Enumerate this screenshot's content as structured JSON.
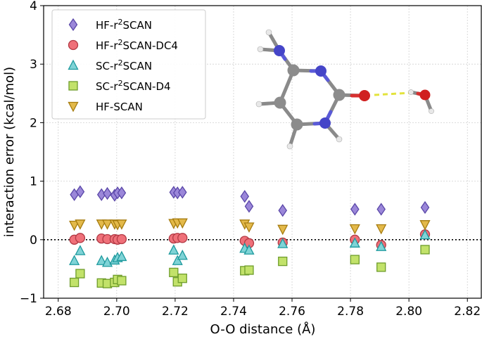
{
  "chart_data": {
    "type": "scatter",
    "xlabel": "O-O distance (Å)",
    "ylabel": "interaction error (kcal/mol)",
    "xlim": [
      2.675,
      2.825
    ],
    "ylim": [
      -1,
      4
    ],
    "xticks": [
      2.68,
      2.7,
      2.72,
      2.74,
      2.76,
      2.78,
      2.8,
      2.82
    ],
    "yticks": [
      -1,
      0,
      1,
      2,
      3,
      4
    ],
    "xtick_labels": [
      "2.68",
      "2.70",
      "2.72",
      "2.74",
      "2.76",
      "2.78",
      "2.80",
      "2.82"
    ],
    "ytick_labels": [
      "−1",
      "0",
      "1",
      "2",
      "3",
      "4"
    ],
    "grid": true,
    "zero_line": 0,
    "legend_position": "top-left",
    "series": [
      {
        "name": "HF-r²SCAN",
        "label_base": "HF-r",
        "label_sup": "2",
        "label_rest": "SCAN",
        "marker": "diamond",
        "color": "#9b87d9",
        "edge": "#5a47a8",
        "x": [
          2.6855,
          2.6875,
          2.6948,
          2.6968,
          2.6993,
          2.7003,
          2.7017,
          2.7195,
          2.7208,
          2.7225,
          2.7438,
          2.7453,
          2.7568,
          2.7815,
          2.7905,
          2.8055
        ],
        "y": [
          0.77,
          0.82,
          0.77,
          0.79,
          0.76,
          0.8,
          0.8,
          0.81,
          0.8,
          0.81,
          0.74,
          0.57,
          0.5,
          0.52,
          0.52,
          0.55
        ]
      },
      {
        "name": "HF-r²SCAN-DC4",
        "label_base": "HF-r",
        "label_sup": "2",
        "label_rest": "SCAN-DC4",
        "marker": "circle",
        "color": "#ef7079",
        "edge": "#b23a45",
        "x": [
          2.6855,
          2.6875,
          2.6948,
          2.6968,
          2.6993,
          2.7003,
          2.7017,
          2.7195,
          2.7208,
          2.7225,
          2.7438,
          2.7453,
          2.7568,
          2.7815,
          2.7905,
          2.8055
        ],
        "y": [
          0.0,
          0.03,
          0.02,
          0.01,
          0.01,
          0.0,
          0.01,
          0.02,
          0.03,
          0.03,
          -0.02,
          -0.06,
          -0.05,
          0.0,
          -0.09,
          0.09
        ]
      },
      {
        "name": "SC-r²SCAN",
        "label_base": "SC-r",
        "label_sup": "2",
        "label_rest": "SCAN",
        "marker": "triangle-up",
        "color": "#7fd3d6",
        "edge": "#1e9a9e",
        "x": [
          2.6855,
          2.6875,
          2.6948,
          2.6968,
          2.6993,
          2.7003,
          2.7017,
          2.7195,
          2.7208,
          2.7225,
          2.7438,
          2.7453,
          2.7568,
          2.7815,
          2.7905,
          2.8055
        ],
        "y": [
          -0.36,
          -0.19,
          -0.36,
          -0.39,
          -0.35,
          -0.31,
          -0.29,
          -0.18,
          -0.36,
          -0.27,
          -0.15,
          -0.18,
          -0.07,
          -0.06,
          -0.12,
          0.08
        ]
      },
      {
        "name": "SC-r²SCAN-D4",
        "label_base": "SC-r",
        "label_sup": "2",
        "label_rest": "SCAN-D4",
        "marker": "square",
        "color": "#c2e26a",
        "edge": "#6f9d2c",
        "x": [
          2.6855,
          2.6875,
          2.6948,
          2.6968,
          2.6993,
          2.7003,
          2.7017,
          2.7195,
          2.7208,
          2.7225,
          2.7438,
          2.7453,
          2.7568,
          2.7815,
          2.7905,
          2.8055
        ],
        "y": [
          -0.73,
          -0.58,
          -0.74,
          -0.75,
          -0.73,
          -0.68,
          -0.7,
          -0.56,
          -0.72,
          -0.66,
          -0.53,
          -0.52,
          -0.37,
          -0.34,
          -0.47,
          -0.17
        ]
      },
      {
        "name": "HF-SCAN",
        "label_base": "HF-SCAN",
        "label_sup": "",
        "label_rest": "",
        "marker": "triangle-down",
        "color": "#e3b94a",
        "edge": "#a67c10",
        "x": [
          2.6855,
          2.6875,
          2.6948,
          2.6968,
          2.6993,
          2.7003,
          2.7017,
          2.7195,
          2.7208,
          2.7225,
          2.7438,
          2.7453,
          2.7568,
          2.7815,
          2.7905,
          2.8055
        ],
        "y": [
          0.25,
          0.27,
          0.27,
          0.27,
          0.27,
          0.26,
          0.27,
          0.28,
          0.29,
          0.29,
          0.27,
          0.22,
          0.18,
          0.19,
          0.19,
          0.26
        ]
      }
    ],
    "inset": {
      "description_type": "molecule",
      "atoms": "C N O H"
    }
  }
}
